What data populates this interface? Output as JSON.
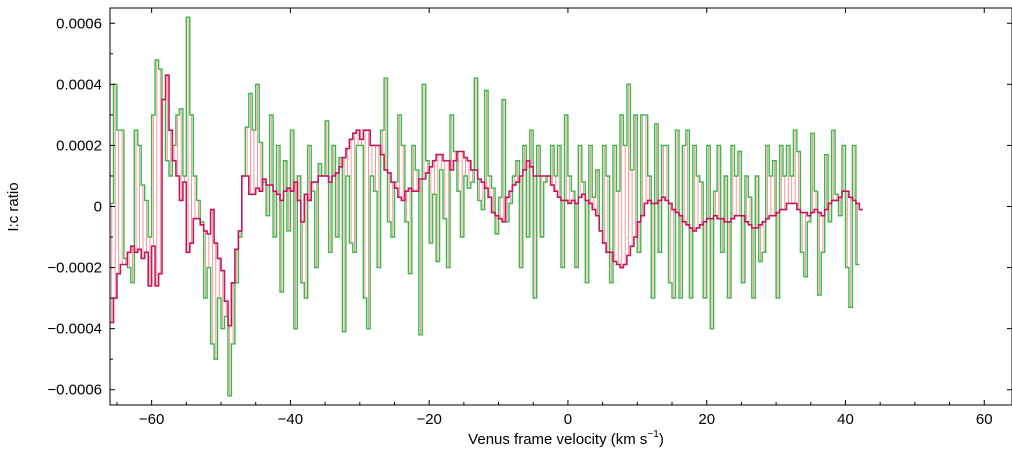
{
  "chart_data": {
    "type": "line",
    "title": "",
    "xlabel": "Venus frame velocity (km s",
    "xlabel_sup": "−1",
    "xlabel_close": ")",
    "ylabel": "I:c ratio",
    "xlim": [
      -66,
      64
    ],
    "ylim": [
      -0.00065,
      0.00065
    ],
    "x_ticks": [
      -60,
      -40,
      -20,
      0,
      20,
      40,
      60
    ],
    "x_tick_labels": [
      "−60",
      "−40",
      "−20",
      "0",
      "20",
      "40",
      "60"
    ],
    "y_ticks": [
      0.0006,
      0.0004,
      0.0002,
      0,
      -0.0002,
      -0.0004,
      -0.0006
    ],
    "y_tick_labels": [
      "0.0006",
      "0.0004",
      "0.0002",
      "0",
      "−0.0002",
      "−0.0004",
      "−0.0006"
    ],
    "step": "histogram",
    "fill_between": "series",
    "colors": {
      "green": "#3cb84a",
      "magenta": "#c2185b",
      "fill_lines": "#f08080"
    },
    "series": [
      {
        "color": "green",
        "x_start": -66.0,
        "x_step": 0.5,
        "values": [
          1e-05,
          0.0004,
          0.00025,
          0.00025,
          -0.00017,
          -0.0002,
          -0.00025,
          0.00025,
          0.0002,
          7e-05,
          2e-05,
          -0.0001,
          0.0003,
          0.00048,
          0.00045,
          0.00035,
          0.00015,
          0.0001,
          0.0002,
          0.0003,
          0.00032,
          0.0001,
          0.00062,
          0.0003,
          0.0001,
          2e-05,
          -5e-05,
          -0.0003,
          -0.0002,
          -0.00045,
          -0.0005,
          -0.0003,
          -0.0004,
          -0.00036,
          -0.00062,
          -0.00045,
          -0.00025,
          -0.0001,
          0.0001,
          0.00026,
          0.00037,
          0.00025,
          0.0004,
          0.00021,
          8e-05,
          -3e-05,
          0.0003,
          -0.0001,
          0.0002,
          -0.00028,
          0.00015,
          -8e-05,
          0.00025,
          -0.0004,
          0.0001,
          -0.00025,
          -0.0003,
          0.0002,
          5e-05,
          -0.0002,
          0.00014,
          0.0001,
          0.00028,
          -0.00015,
          0.0002,
          -0.0001,
          0.00016,
          -0.00041,
          0.0001,
          -0.00012,
          -0.00015,
          0.0002,
          0.0002,
          -0.0003,
          -0.0004,
          0.0001,
          5e-05,
          -0.0002,
          0.00025,
          0.00042,
          -5e-05,
          -0.0001,
          8e-05,
          0.0003,
          0.0002,
          -5e-05,
          -0.00022,
          0.0002,
          0.00012,
          -0.00042,
          0.0004,
          0.00015,
          -0.00012,
          4e-05,
          -0.00018,
          0.00012,
          -4e-05,
          -0.0002,
          0.0003,
          0.00018,
          5e-05,
          -0.0001,
          0.0001,
          6e-05,
          8e-05,
          0.00042,
          2e-05,
          -1e-05,
          0.00038,
          0.0001,
          6e-05,
          -9e-05,
          3e-05,
          0.00035,
          -5e-05,
          1e-05,
          0.0001,
          0.00015,
          -0.0002,
          0.0002,
          -0.0001,
          0.00025,
          -0.0003,
          0.0002,
          -0.0001,
          8e-05,
          0.0001,
          0.0002,
          0.0001,
          0.0002,
          -0.0002,
          0.0003,
          0.0001,
          5e-05,
          -0.0002,
          0.0002,
          8e-05,
          -0.00025,
          0.0002,
          3e-05,
          0.00012,
          -8e-05,
          0.0002,
          0.0001,
          -0.00025,
          0.0002,
          5e-05,
          0.0003,
          0.0002,
          0.0004,
          0.00012,
          0.0003,
          -0.00015,
          0.0003,
          0.0003,
          0.0001,
          -0.0003,
          0.00027,
          -0.00015,
          0.0002,
          0.0002,
          -0.00025,
          -0.0003,
          0.00025,
          -0.0003,
          0.0002,
          0.00025,
          -0.0003,
          0.0002,
          0.0001,
          8e-05,
          -0.0003,
          0.0002,
          -0.0004,
          5e-05,
          0.0002,
          -0.00015,
          0.0001,
          -0.0003,
          0.0002,
          0.0001,
          0.00018,
          -0.00025,
          0.0001,
          3e-05,
          -0.0003,
          0.0001,
          -0.00018,
          -0.00015,
          0.0002,
          0.0001,
          0.00015,
          -0.0003,
          0.0002,
          0.0001,
          0.0002,
          0.0001,
          0.00025,
          0.00018,
          -0.00015,
          -0.00023,
          -5e-05,
          0.00024,
          5e-05,
          -0.00029,
          -0.00015,
          0.00017,
          -5e-05,
          0.00025,
          4e-05,
          -3e-05,
          0.0002,
          -0.0002,
          -0.00033,
          0.0002,
          -0.00019
        ]
      },
      {
        "color": "magenta",
        "x_start": -66.0,
        "x_step": 0.5,
        "values": [
          -0.00038,
          -0.0003,
          -0.00022,
          -0.00019,
          -0.00019,
          -0.00015,
          -0.00013,
          -0.00015,
          -0.00014,
          -0.00017,
          -0.00015,
          -0.00026,
          -0.00013,
          -0.00026,
          -0.00022,
          0.00035,
          0.00043,
          0.00025,
          0.00015,
          0.0001,
          2e-05,
          8e-05,
          -0.00015,
          -0.00012,
          -4e-05,
          -4e-05,
          -6e-05,
          -8e-05,
          -9e-05,
          -1e-05,
          -0.00012,
          -0.00017,
          -0.00021,
          -0.00031,
          -0.00039,
          -0.00025,
          -0.00014,
          -8e-05,
          0.0001,
          0.0001,
          4e-05,
          4e-05,
          6e-05,
          5e-05,
          9e-05,
          7e-05,
          7e-05,
          5e-05,
          4e-05,
          2e-05,
          5e-05,
          6e-05,
          5e-05,
          8e-05,
          2e-05,
          -5e-05,
          4e-05,
          2e-05,
          8e-05,
          8e-05,
          0.0001,
          0.0001,
          0.0001,
          8e-05,
          0.0001,
          0.00011,
          0.00013,
          0.00016,
          0.00019,
          0.00022,
          0.00024,
          0.00025,
          0.00022,
          0.00025,
          0.00025,
          0.0002,
          0.0002,
          0.0002,
          0.00017,
          0.00012,
          0.00011,
          8e-05,
          6e-05,
          3e-05,
          2e-05,
          5e-05,
          6e-05,
          5e-05,
          5e-05,
          9e-05,
          9e-05,
          0.00011,
          0.00013,
          0.00015,
          0.00017,
          0.00017,
          0.00015,
          0.00015,
          0.00012,
          0.00015,
          0.00018,
          0.00018,
          0.00016,
          0.00015,
          0.00012,
          0.00012,
          9e-05,
          8e-05,
          6e-05,
          3e-05,
          -2e-05,
          -3e-05,
          -4e-05,
          -5e-05,
          3e-05,
          5e-05,
          7e-05,
          8e-05,
          0.0001,
          0.00012,
          0.00015,
          0.00013,
          0.0001,
          0.0001,
          0.0001,
          0.0001,
          0.0001,
          7e-05,
          5e-05,
          3e-05,
          2e-05,
          2e-05,
          1e-05,
          2e-05,
          1e-05,
          3e-05,
          4e-05,
          2e-05,
          1e-05,
          -1e-05,
          -3e-05,
          -8e-05,
          -0.00012,
          -0.00015,
          -0.00015,
          -0.00018,
          -0.00019,
          -0.0002,
          -0.00019,
          -0.00016,
          -0.00013,
          -0.0001,
          -5e-05,
          -3e-05,
          1e-05,
          2e-05,
          1e-05,
          1e-05,
          2e-05,
          3e-05,
          2e-05,
          1e-05,
          -1e-05,
          -2e-05,
          -3e-05,
          -5e-05,
          -6e-05,
          -7e-05,
          -8e-05,
          -7e-05,
          -6e-05,
          -5e-05,
          -4e-05,
          -4e-05,
          -3e-05,
          -4e-05,
          -4e-05,
          -5e-05,
          -5e-05,
          -4e-05,
          -3e-05,
          -3e-05,
          -3e-05,
          -5e-05,
          -6e-05,
          -7e-05,
          -7e-05,
          -6e-05,
          -5e-05,
          -4e-05,
          -3e-05,
          -3e-05,
          -2e-05,
          -1e-05,
          -1e-05,
          1e-05,
          1e-05,
          1e-05,
          -1e-05,
          -2e-05,
          -2e-05,
          -3e-05,
          -2e-05,
          -1e-05,
          -2e-05,
          -3e-05,
          -1e-05,
          1e-05,
          2e-05,
          2e-05,
          3e-05,
          5e-05,
          5e-05,
          3e-05,
          2e-05,
          1e-05,
          -1e-05
        ]
      }
    ]
  }
}
